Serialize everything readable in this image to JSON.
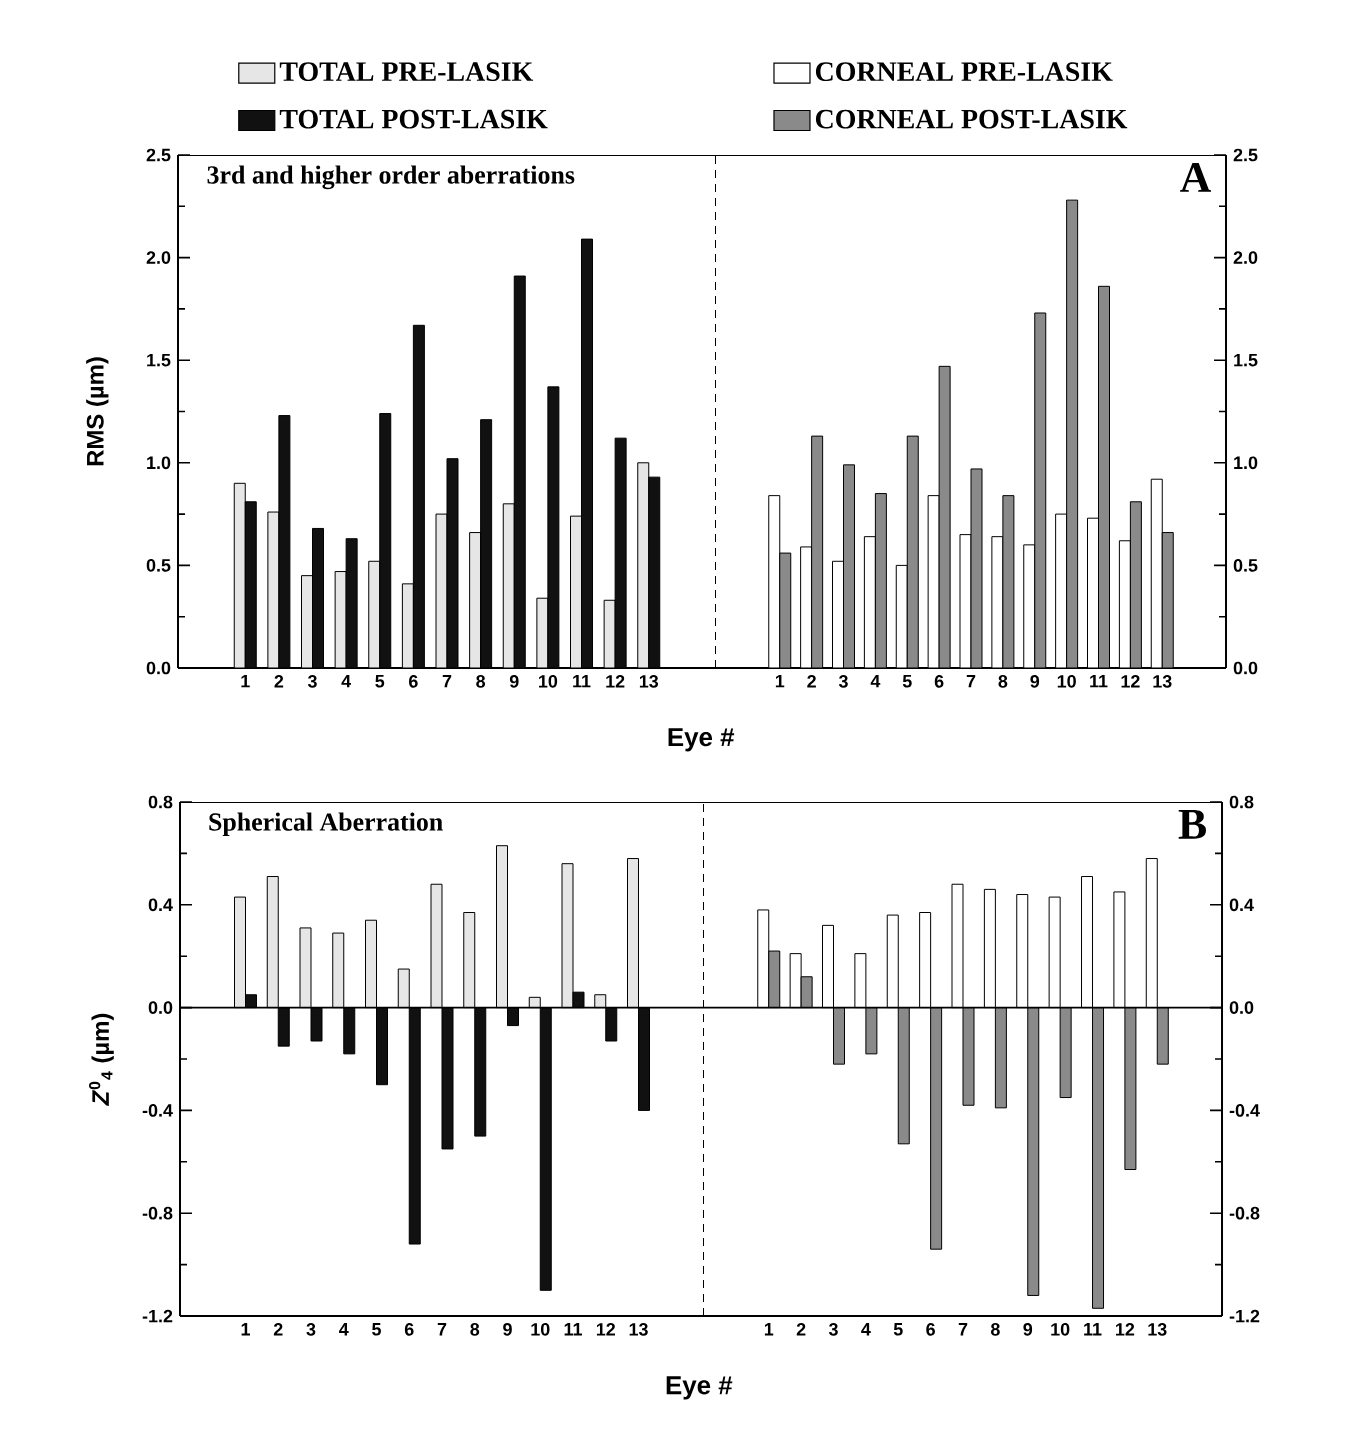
{
  "chart_data": [
    {
      "type": "bar",
      "title": "3rd and higher order aberrations",
      "ylabel": "RMS (µm)",
      "legend": "top",
      "categories": [
        "1",
        "2",
        "3",
        "4",
        "5",
        "6",
        "7",
        "8",
        "9",
        "10",
        "11",
        "12",
        "13"
      ],
      "series": [
        {
          "name": "TOTAL PRE-LASIK",
          "color": "#e6e6e6",
          "values": [
            0.9,
            0.76,
            0.45,
            0.47,
            0.52,
            0.41,
            0.75,
            0.66,
            0.8,
            0.34,
            0.74,
            0.33,
            1.0
          ]
        },
        {
          "name": "TOTAL POST-LASIK",
          "color": "#111111",
          "values": [
            0.81,
            1.23,
            0.68,
            0.63,
            1.24,
            1.67,
            1.02,
            1.21,
            1.91,
            1.37,
            2.09,
            1.12,
            0.93
          ]
        }
      ],
      "ylim": [
        0,
        2.5
      ],
      "yticks": [
        {
          "value": 0,
          "label": "0.0"
        },
        {
          "value": 0.5,
          "label": "0.5"
        },
        {
          "value": 1,
          "label": "1.0"
        },
        {
          "value": 1.5,
          "label": "1.5"
        },
        {
          "value": 2,
          "label": "2.0"
        },
        {
          "value": 2.5,
          "label": "2.5"
        }
      ]
    },
    {
      "type": "bar",
      "title": "A",
      "xlabel": "Eye #",
      "legend": "top",
      "categories": [
        "1",
        "2",
        "3",
        "4",
        "5",
        "6",
        "7",
        "8",
        "9",
        "10",
        "11",
        "12",
        "13"
      ],
      "series": [
        {
          "name": "CORNEAL PRE-LASIK",
          "color": "#ffffff",
          "values": [
            0.84,
            0.59,
            0.52,
            0.64,
            0.5,
            0.84,
            0.65,
            0.64,
            0.6,
            0.75,
            0.73,
            0.62,
            0.92
          ]
        },
        {
          "name": "CORNEAL POST-LASIK",
          "color": "#8a8a8a",
          "values": [
            0.56,
            1.13,
            0.99,
            0.85,
            1.13,
            1.47,
            0.97,
            0.84,
            1.73,
            2.28,
            1.86,
            0.81,
            0.66
          ]
        }
      ],
      "ylim": [
        0,
        2.5
      ],
      "yticks": [
        {
          "value": 0,
          "label": "0.0"
        },
        {
          "value": 0.5,
          "label": "0.5"
        },
        {
          "value": 1,
          "label": "1.0"
        },
        {
          "value": 1.5,
          "label": "1.5"
        },
        {
          "value": 2,
          "label": "2.0"
        },
        {
          "value": 2.5,
          "label": "2.5"
        }
      ]
    },
    {
      "type": "bar",
      "title": "Spherical Aberration",
      "ylabel": "*Z*$^{0}$$_{4}$ (µm)",
      "categories": [
        "1",
        "2",
        "3",
        "4",
        "5",
        "6",
        "7",
        "8",
        "9",
        "10",
        "11",
        "12",
        "13"
      ],
      "series": [
        {
          "color": "#e6e6e6",
          "values": [
            0.43,
            0.51,
            0.31,
            0.29,
            0.34,
            0.15,
            0.48,
            0.37,
            0.63,
            0.04,
            0.56,
            0.05,
            0.58
          ]
        },
        {
          "color": "#111111",
          "values": [
            0.05,
            -0.15,
            -0.13,
            -0.18,
            -0.3,
            -0.92,
            -0.55,
            -0.5,
            -0.07,
            -1.1,
            0.06,
            -0.13,
            -0.4
          ]
        }
      ],
      "ylim": [
        -1.2,
        0.8
      ],
      "yticks": [
        -1.2,
        -0.8,
        -0.4,
        {
          "value": 0,
          "label": "0.0"
        },
        0.4,
        0.8
      ],
      "ref_lines": [
        {
          "axis": "y",
          "value": 0
        }
      ]
    },
    {
      "type": "bar",
      "title": "B",
      "xlabel": "Eye #",
      "categories": [
        "1",
        "2",
        "3",
        "4",
        "5",
        "6",
        "7",
        "8",
        "9",
        "10",
        "11",
        "12",
        "13"
      ],
      "series": [
        {
          "color": "#ffffff",
          "values": [
            0.38,
            0.21,
            0.32,
            0.21,
            0.36,
            0.37,
            0.48,
            0.46,
            0.44,
            0.43,
            0.51,
            0.45,
            0.58
          ]
        },
        {
          "color": "#8a8a8a",
          "values": [
            0.22,
            0.12,
            -0.22,
            -0.18,
            -0.53,
            -0.94,
            -0.38,
            -0.39,
            -1.12,
            -0.35,
            -1.17,
            -0.63,
            -0.22
          ]
        }
      ],
      "ylim": [
        -1.2,
        0.8
      ],
      "yticks": [
        -1.2,
        -0.8,
        -0.4,
        {
          "value": 0,
          "label": "0.0"
        },
        0.4,
        0.8
      ],
      "ref_lines": [
        {
          "axis": "y",
          "value": 0
        }
      ]
    }
  ]
}
